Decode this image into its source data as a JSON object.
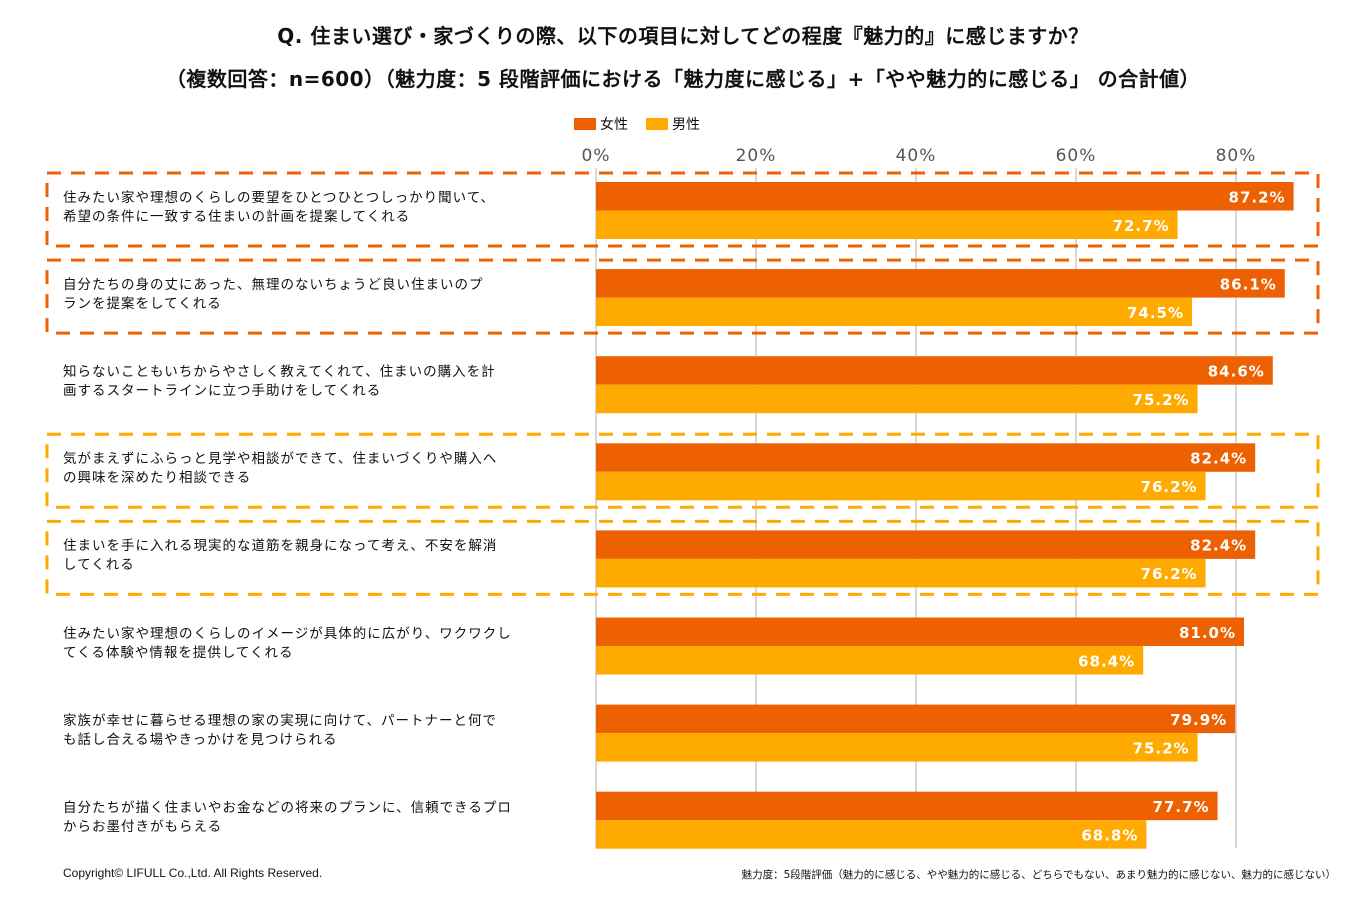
{
  "title_line1": "Q.  住まい選び・家づくりの際、以下の項目に対してどの程度『魅力的』に感じますか？",
  "title_line2": "（複数回答：n=600）（魅力度：5 段階評価における「魅力度に感じる」+「やや魅力的に感じる」 の合計値）",
  "colors": {
    "female": "#ED6103",
    "male": "#FFAA00",
    "grid": "#cccccc",
    "box_orange": "#ED6103",
    "box_yellow": "#FFAA00"
  },
  "footer": {
    "copyright": "Copyright© LIFULL Co.,Ltd. All Rights Reserved.",
    "note": "魅力度：5段階評価（魅力的に感じる、やや魅力的に感じる、どちらでもない、あまり魅力的に感じない、魅力的に感じない）"
  },
  "chart_data": {
    "type": "bar",
    "orientation": "horizontal",
    "title": "Q.  住まい選び・家づくりの際、以下の項目に対してどの程度『魅力的』に感じますか？",
    "xlabel": "",
    "ylabel": "",
    "xlim": [
      0,
      88
    ],
    "grid": true,
    "legend_position": "top",
    "ticks": [
      "0%",
      "20%",
      "40%",
      "60%",
      "80%"
    ],
    "tick_values": [
      0,
      20,
      40,
      60,
      80
    ],
    "categories": [
      "住みたい家や理想のくらしの要望をひとつひとつしっかり聞いて、\n希望の条件に一致する住まいの計画を提案してくれる",
      "自分たちの身の丈にあった、無理のないちょうど良い住まいのプ\nランを提案をしてくれる",
      "知らないこともいちからやさしく教えてくれて、住まいの購入を計\n画するスタートラインに立つ手助けをしてくれる",
      "気がまえずにふらっと見学や相談ができて、住まいづくりや購入へ\nの興味を深めたり相談できる",
      "住まいを手に入れる現実的な道筋を親身になって考え、不安を解消\nしてくれる",
      "住みたい家や理想のくらしのイメージが具体的に広がり、ワクワクし\nてくる体験や情報を提供してくれる",
      "家族が幸せに暮らせる理想の家の実現に向けて、パートナーと何で\nも話し合える場やきっかけを見つけられる",
      "自分たちが描く住まいやお金などの将来のプランに、信頼できるプロ\nからお墨付きがもらえる"
    ],
    "highlight": [
      "orange",
      "orange",
      "none",
      "yellow",
      "yellow",
      "none",
      "none",
      "none"
    ],
    "series": [
      {
        "name": "女性",
        "values": [
          87.2,
          86.1,
          84.6,
          82.4,
          82.4,
          81.0,
          79.9,
          77.7
        ],
        "labels": [
          "87.2%",
          "86.1%",
          "84.6%",
          "82.4%",
          "82.4%",
          "81.0%",
          "79.9%",
          "77.7%"
        ]
      },
      {
        "name": "男性",
        "values": [
          72.7,
          74.5,
          75.2,
          76.2,
          76.2,
          68.4,
          75.2,
          68.8
        ],
        "labels": [
          "72.7%",
          "74.5%",
          "75.2%",
          "76.2%",
          "76.2%",
          "68.4%",
          "75.2%",
          "68.8%"
        ]
      }
    ]
  }
}
